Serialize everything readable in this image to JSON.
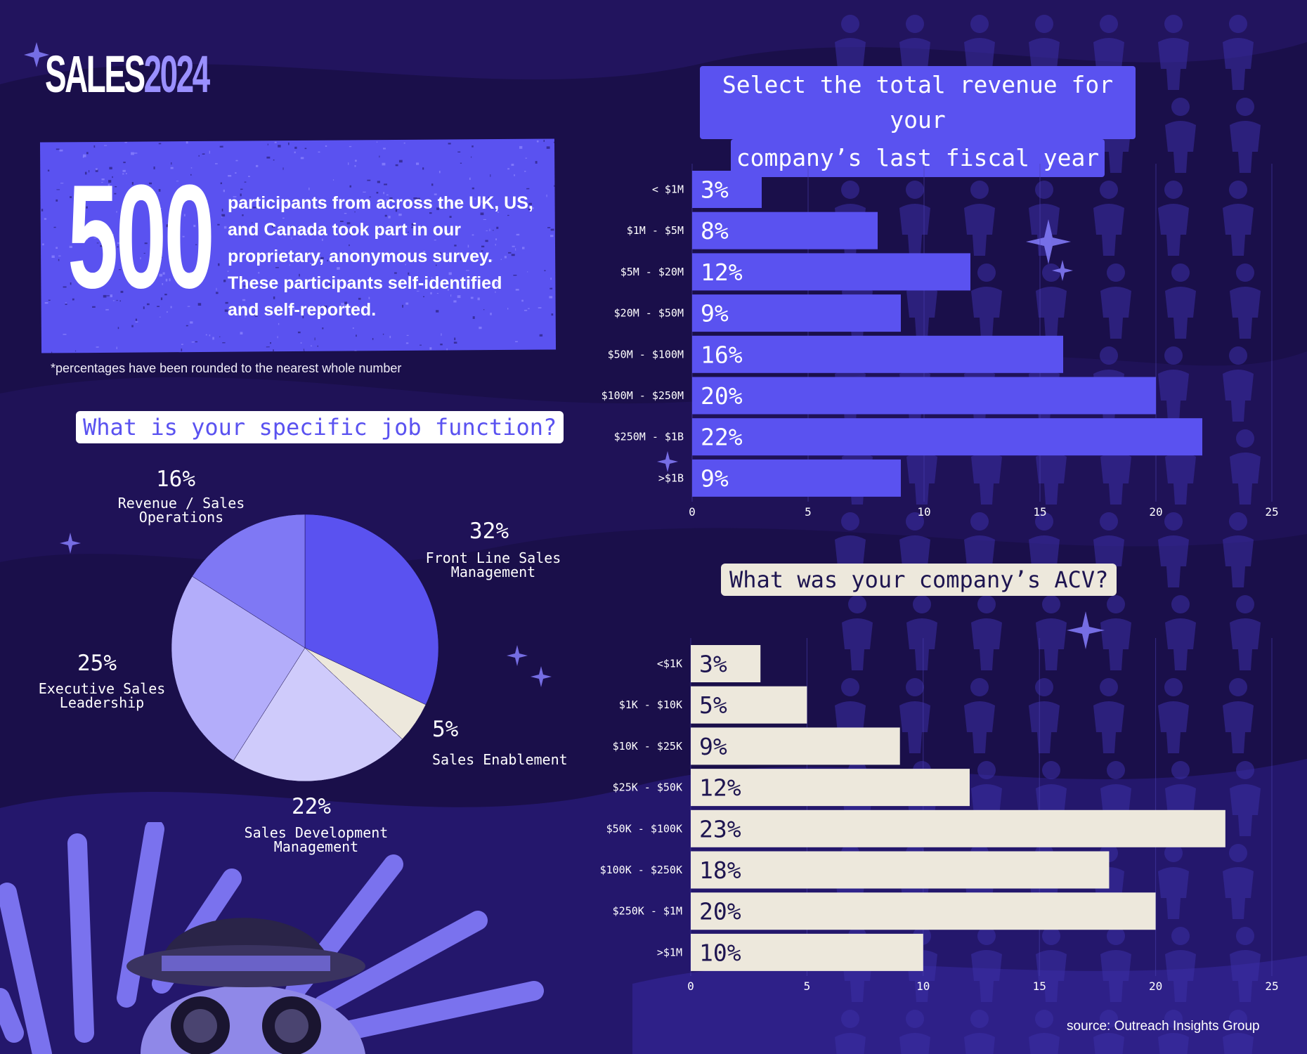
{
  "brand": {
    "name": "SALES",
    "year": "2024"
  },
  "stat": {
    "number": "500",
    "text": "participants from across the UK, US, and Canada took part in our proprietary, anonymous survey. These participants self-identified and self-reported."
  },
  "footnote": "*percentages have been rounded to the nearest whole number",
  "source": "source: Outreach Insights Group",
  "colors": {
    "background": "#1a0f4a",
    "accent": "#5a52f0",
    "cream": "#ede8dc"
  },
  "chart_data": [
    {
      "type": "pie",
      "title": "What is your specific job function?",
      "slices": [
        {
          "label": "Front Line Sales Management",
          "pct_label": "32%",
          "value": 32,
          "color": "#5a52f0"
        },
        {
          "label": "Sales Enablement",
          "pct_label": "5%",
          "value": 5,
          "color": "#ede8dc"
        },
        {
          "label": "Sales Development Management",
          "pct_label": "22%",
          "value": 22,
          "color": "#cfcbfb"
        },
        {
          "label": "Executive Sales Leadership",
          "pct_label": "25%",
          "value": 25,
          "color": "#b3adfa"
        },
        {
          "label": "Revenue / Sales Operations",
          "pct_label": "16%",
          "value": 16,
          "color": "#7f78f4"
        }
      ]
    },
    {
      "type": "bar",
      "orientation": "horizontal",
      "title_lines": [
        "Select the total revenue for your",
        "company’s last fiscal year"
      ],
      "categories": [
        "< $1M",
        "$1M - $5M",
        "$5M - $20M",
        "$20M - $50M",
        "$50M - $100M",
        "$100M - $250M",
        "$250M - $1B",
        ">$1B"
      ],
      "values": [
        3,
        8,
        12,
        9,
        16,
        20,
        22,
        9
      ],
      "value_labels": [
        "3%",
        "8%",
        "12%",
        "9%",
        "16%",
        "20%",
        "22%",
        "9%"
      ],
      "xlim": [
        0,
        25
      ],
      "ticks": [
        "0",
        "5",
        "10",
        "15",
        "20",
        "25"
      ],
      "bar_color": "#5a52f0",
      "label_color": "#ffffff"
    },
    {
      "type": "bar",
      "orientation": "horizontal",
      "title": "What was your company’s ACV?",
      "categories": [
        "<$1K",
        "$1K - $10K",
        "$10K - $25K",
        "$25K - $50K",
        "$50K - $100K",
        "$100K - $250K",
        "$250K - $1M",
        ">$1M"
      ],
      "values": [
        3,
        5,
        9,
        12,
        23,
        18,
        20,
        10
      ],
      "value_labels": [
        "3%",
        "5%",
        "9%",
        "12%",
        "23%",
        "18%",
        "20%",
        "10%"
      ],
      "xlim": [
        0,
        25
      ],
      "ticks": [
        "0",
        "5",
        "10",
        "15",
        "20",
        "25"
      ],
      "bar_color": "#ede8dc",
      "label_color": "#1e1550"
    }
  ]
}
